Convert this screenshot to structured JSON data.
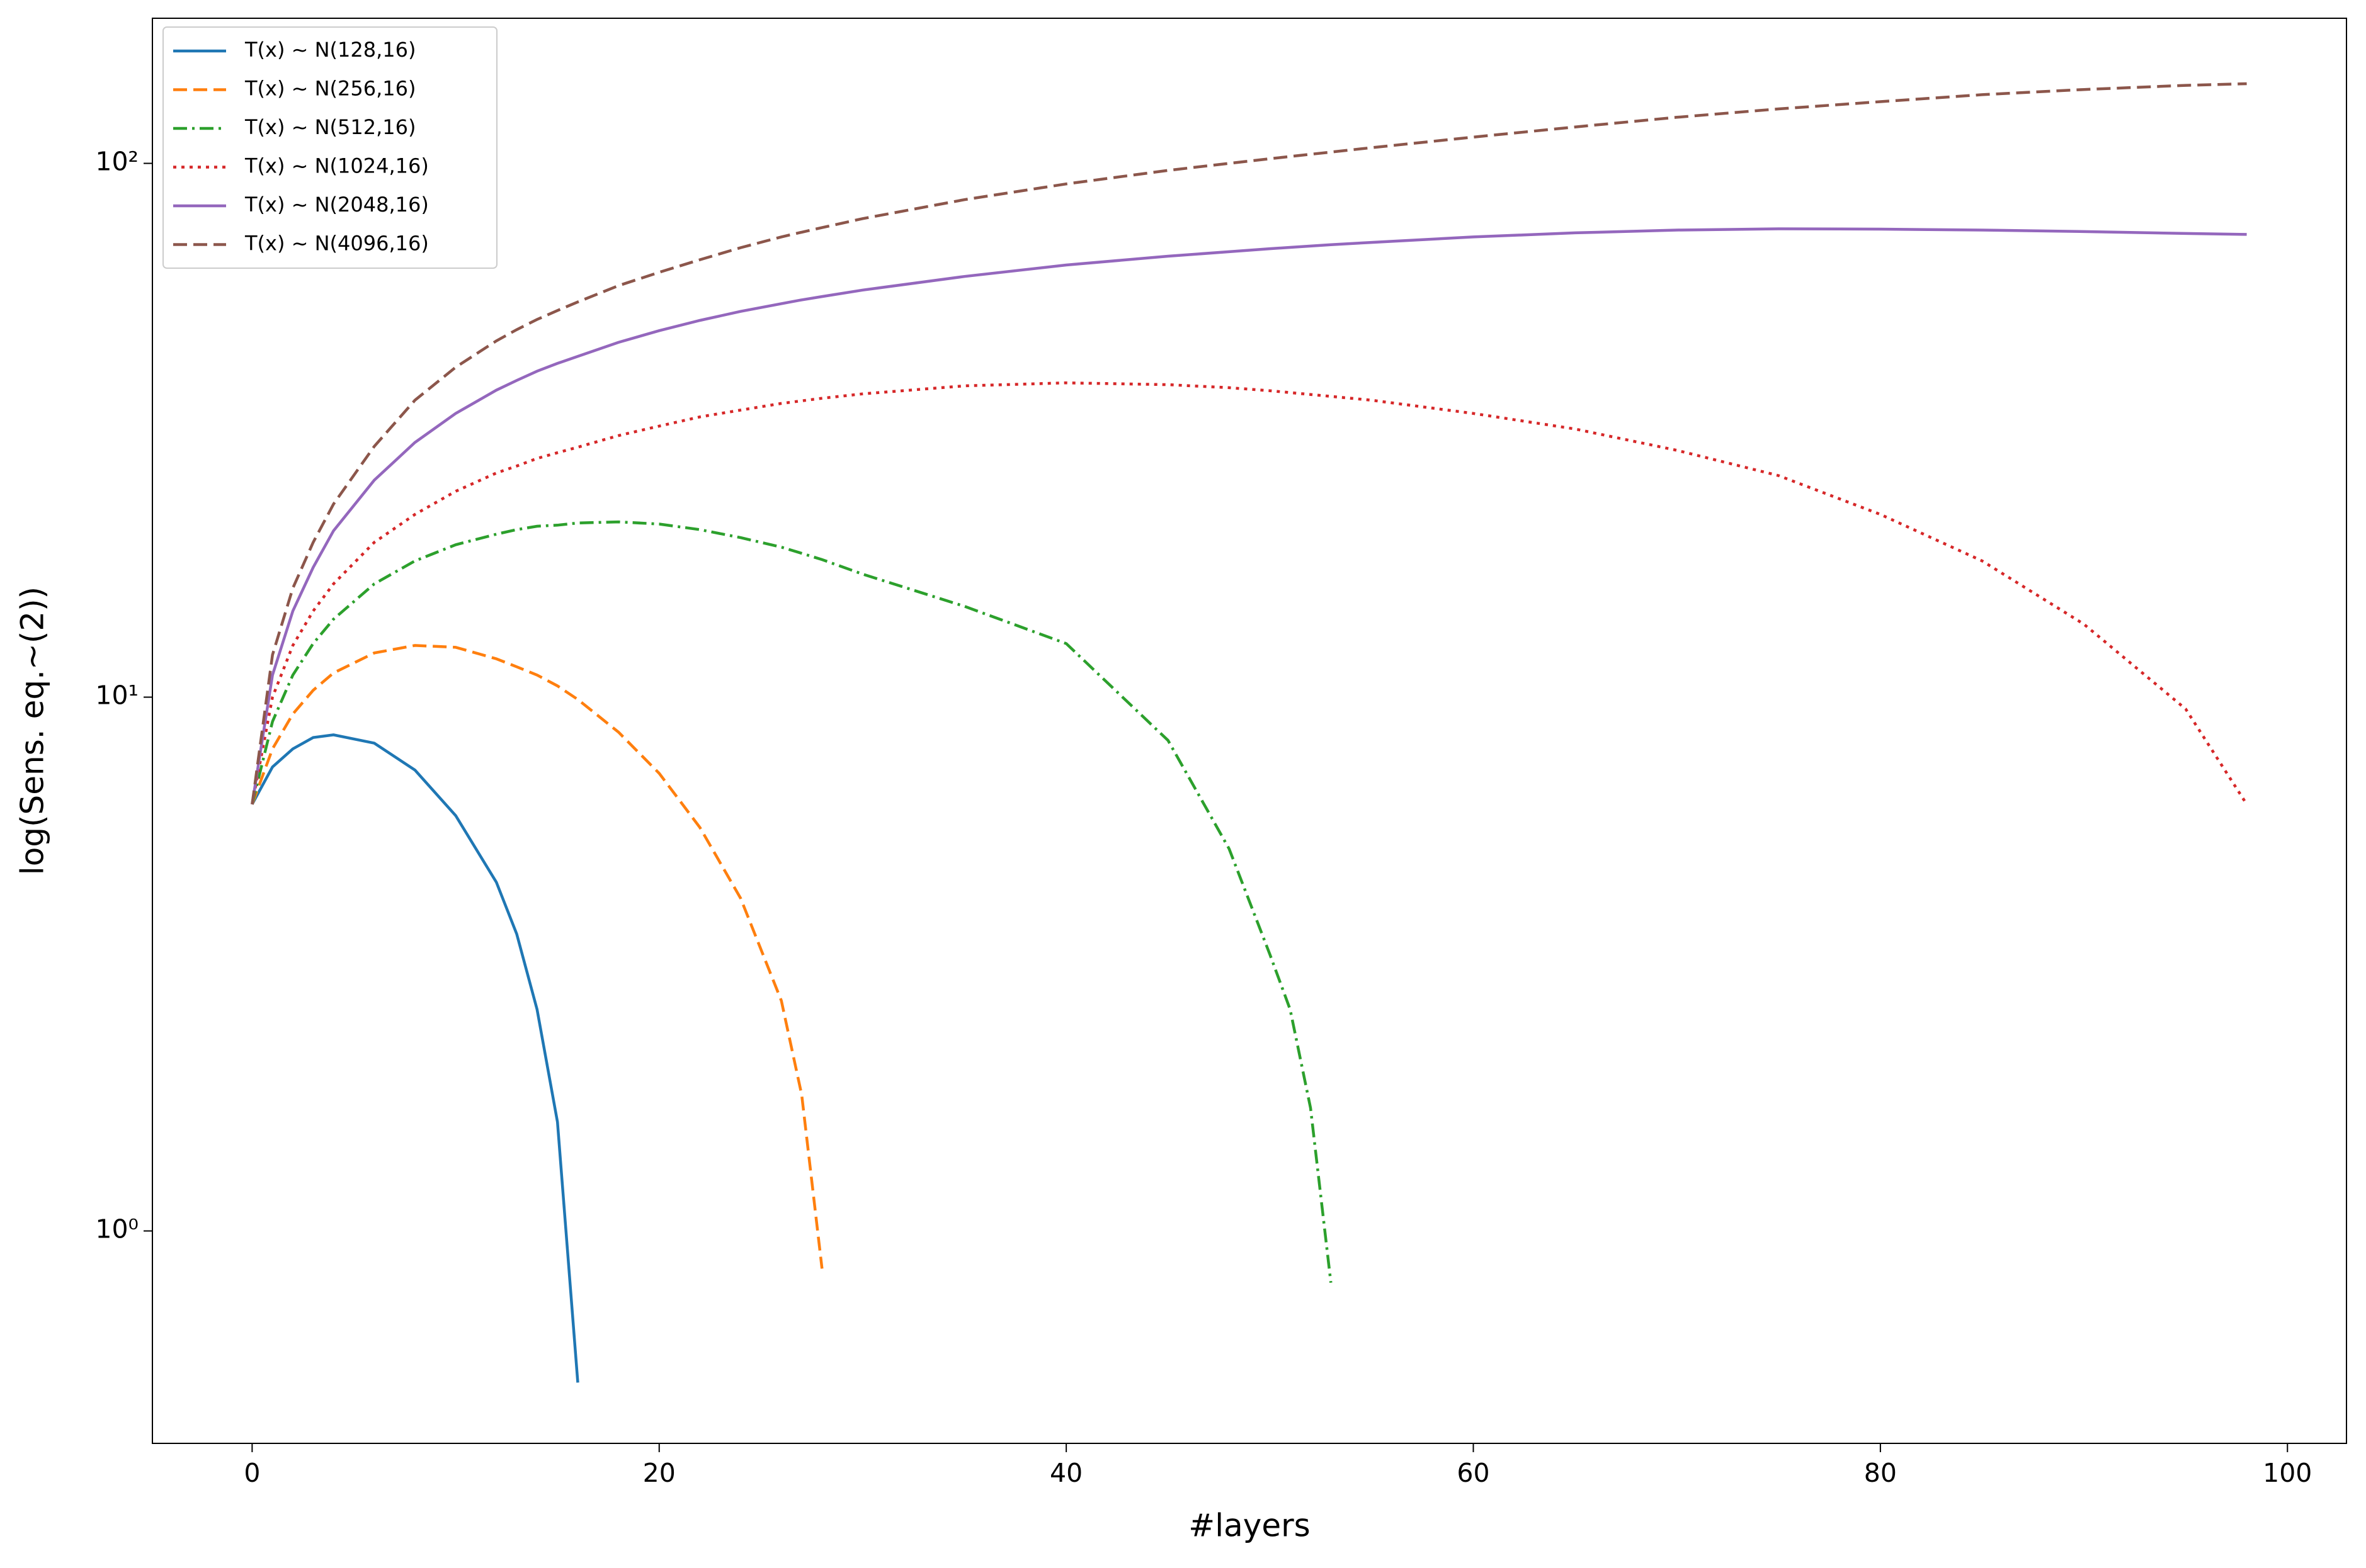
{
  "chart_data": {
    "type": "line",
    "xlabel": "#layers",
    "ylabel": "log(Sens. eq.~(2))",
    "yscale": "log",
    "legend_loc": "upper left",
    "xlim": [
      -4.9,
      102.9
    ],
    "xticks": [
      0,
      20,
      40,
      60,
      80,
      100
    ],
    "ylim": [
      0.4,
      187
    ],
    "yticks": [
      {
        "value": 1,
        "label": "10⁰"
      },
      {
        "value": 10,
        "label": "10¹"
      },
      {
        "value": 100,
        "label": "10²"
      }
    ],
    "x": [
      0,
      1,
      2,
      3,
      4,
      6,
      8,
      10,
      12,
      13,
      14,
      15,
      16,
      18,
      20,
      22,
      24,
      26,
      27,
      28,
      30,
      35,
      40,
      45,
      48,
      50,
      51,
      52,
      53,
      55,
      60,
      65,
      70,
      75,
      80,
      85,
      90,
      95,
      98
    ],
    "series": [
      {
        "name": "T(x) ~ N(128,16)",
        "color": "#1f77b4",
        "linestyle": "solid",
        "values": [
          6.3,
          7.4,
          8.0,
          8.4,
          8.5,
          8.2,
          7.3,
          6.0,
          4.5,
          3.6,
          2.6,
          1.6,
          0.52,
          null,
          null,
          null,
          null,
          null,
          null,
          null,
          null,
          null,
          null,
          null,
          null,
          null,
          null,
          null,
          null,
          null,
          null,
          null,
          null,
          null,
          null,
          null,
          null,
          null,
          null
        ]
      },
      {
        "name": "T(x) ~ N(256,16)",
        "color": "#ff7f0e",
        "linestyle": "dashed",
        "values": [
          6.3,
          8.0,
          9.3,
          10.3,
          11.1,
          12.1,
          12.5,
          12.4,
          11.8,
          11.4,
          11.0,
          10.5,
          9.9,
          8.6,
          7.2,
          5.7,
          4.2,
          2.7,
          1.8,
          0.85,
          null,
          null,
          null,
          null,
          null,
          null,
          null,
          null,
          null,
          null,
          null,
          null,
          null,
          null,
          null,
          null,
          null,
          null,
          null
        ]
      },
      {
        "name": "T(x) ~ N(512,16)",
        "color": "#2ca02c",
        "linestyle": "dashdot",
        "values": [
          6.3,
          9,
          11,
          12.6,
          14,
          16.3,
          18,
          19.3,
          20.2,
          20.6,
          20.9,
          21,
          21.2,
          21.3,
          21.1,
          20.6,
          19.9,
          19.1,
          18.6,
          18.1,
          17.0,
          14.8,
          12.6,
          8.3,
          5.2,
          3.3,
          2.6,
          1.7,
          0.8,
          null,
          null,
          null,
          null,
          null,
          null,
          null,
          null,
          null,
          null
        ]
      },
      {
        "name": "T(x) ~ N(1024,16)",
        "color": "#d62728",
        "linestyle": "dotted",
        "values": [
          6.3,
          10,
          12.5,
          14.5,
          16.3,
          19.5,
          22,
          24.3,
          26.3,
          27.1,
          28,
          28.7,
          29.4,
          30.9,
          32.2,
          33.5,
          34.5,
          35.5,
          35.9,
          36.3,
          37,
          38.3,
          38.8,
          38.5,
          38,
          37.5,
          37.2,
          36.9,
          36.6,
          36,
          34,
          31.8,
          29,
          26,
          22,
          18,
          13.7,
          9.5,
          6.3
        ]
      },
      {
        "name": "T(x) ~ N(2048,16)",
        "color": "#9467bd",
        "linestyle": "solid",
        "values": [
          6.3,
          11,
          14.5,
          17.5,
          20.5,
          25.5,
          30,
          34,
          37.6,
          39.2,
          40.8,
          42.2,
          43.5,
          46.2,
          48.6,
          50.8,
          52.8,
          54.6,
          55.5,
          56.3,
          57.9,
          61.4,
          64.5,
          67,
          68.3,
          69.2,
          69.6,
          70,
          70.4,
          71.1,
          72.8,
          74.1,
          75,
          75.4,
          75.3,
          75,
          74.5,
          73.9,
          73.6
        ]
      },
      {
        "name": "T(x) ~ N(4096,16)",
        "color": "#8c564b",
        "linestyle": "dashed",
        "values": [
          6.3,
          12,
          16,
          19.5,
          23,
          29.5,
          36,
          41.5,
          46.5,
          48.8,
          51,
          53,
          55,
          59,
          62.5,
          66,
          69.5,
          72.8,
          74.3,
          75.8,
          78.8,
          85.5,
          91.5,
          97,
          100,
          102,
          103,
          104,
          105,
          107,
          112,
          117,
          122,
          126.5,
          130.5,
          134.5,
          137.5,
          140,
          141
        ]
      }
    ]
  }
}
